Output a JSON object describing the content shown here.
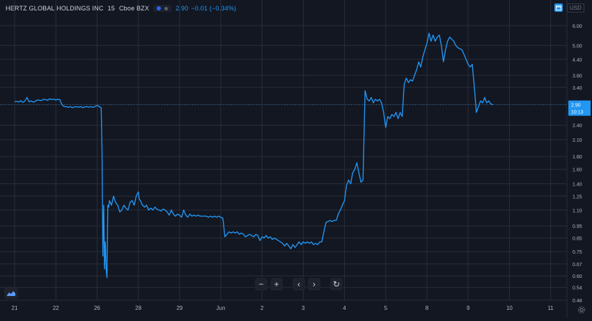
{
  "header": {
    "symbol": "HERTZ GLOBAL HOLDINGS INC",
    "interval": "15",
    "exchange": "Cboe BZX",
    "price": "2.90",
    "change": "−0.01 (−0.34%)"
  },
  "currency": "USD",
  "toolbar": {
    "zoom_out": "−",
    "zoom_in": "+",
    "scroll_left": "‹",
    "scroll_right": "›",
    "reset": "↻"
  },
  "price_label": {
    "value": "2.90",
    "time": "10:13"
  },
  "colors": {
    "background": "#131722",
    "line": "#2196f3",
    "grid": "#2a2e39",
    "text": "#b2b5be"
  },
  "chart_data": {
    "type": "line",
    "title": "HERTZ GLOBAL HOLDINGS INC · 15 · Cboe BZX",
    "y_scale": "log",
    "ylim": [
      0.48,
      6.6
    ],
    "grid": true,
    "y_ticks": [
      "6.00",
      "5.00",
      "4.40",
      "3.80",
      "3.40",
      "2.90",
      "2.40",
      "2.10",
      "1.80",
      "1.60",
      "1.40",
      "1.25",
      "1.10",
      "0.95",
      "0.85",
      "0.75",
      "0.67",
      "0.60",
      "0.54",
      "0.48"
    ],
    "x_ticks": [
      "21",
      "22",
      "26",
      "28",
      "29",
      "Jun",
      "2",
      "3",
      "4",
      "5",
      "8",
      "9",
      "10",
      "11"
    ],
    "series": [
      {
        "name": "",
        "points": [
          [
            0.0,
            2.98
          ],
          [
            0.05,
            2.99
          ],
          [
            0.1,
            2.97
          ],
          [
            0.15,
            3.01
          ],
          [
            0.2,
            2.96
          ],
          [
            0.25,
            3.0
          ],
          [
            0.3,
            3.1
          ],
          [
            0.35,
            2.98
          ],
          [
            0.4,
            3.0
          ],
          [
            0.45,
            2.97
          ],
          [
            0.5,
            2.99
          ],
          [
            0.55,
            3.03
          ],
          [
            0.6,
            3.02
          ],
          [
            0.65,
            3.01
          ],
          [
            0.7,
            3.05
          ],
          [
            0.75,
            3.04
          ],
          [
            0.8,
            3.02
          ],
          [
            0.85,
            3.06
          ],
          [
            0.9,
            3.04
          ],
          [
            0.95,
            3.05
          ],
          [
            1.0,
            3.03
          ],
          [
            1.05,
            3.05
          ],
          [
            1.1,
            3.03
          ],
          [
            1.12,
            2.97
          ],
          [
            1.15,
            2.9
          ],
          [
            1.2,
            2.85
          ],
          [
            1.25,
            2.85
          ],
          [
            1.3,
            2.83
          ],
          [
            1.35,
            2.85
          ],
          [
            1.4,
            2.82
          ],
          [
            1.45,
            2.84
          ],
          [
            1.5,
            2.85
          ],
          [
            1.55,
            2.83
          ],
          [
            1.6,
            2.85
          ],
          [
            1.65,
            2.82
          ],
          [
            1.7,
            2.84
          ],
          [
            1.75,
            2.85
          ],
          [
            1.8,
            2.83
          ],
          [
            1.85,
            2.85
          ],
          [
            1.9,
            2.83
          ],
          [
            1.95,
            2.85
          ],
          [
            2.0,
            2.88
          ],
          [
            2.05,
            2.85
          ],
          [
            2.1,
            2.82
          ],
          [
            2.12,
            1.9
          ],
          [
            2.14,
            0.72
          ],
          [
            2.16,
            1.15
          ],
          [
            2.18,
            0.64
          ],
          [
            2.2,
            0.82
          ],
          [
            2.22,
            0.64
          ],
          [
            2.24,
            0.59
          ],
          [
            2.26,
            1.15
          ],
          [
            2.28,
            1.13
          ],
          [
            2.3,
            1.2
          ],
          [
            2.35,
            1.15
          ],
          [
            2.4,
            1.25
          ],
          [
            2.45,
            1.18
          ],
          [
            2.5,
            1.15
          ],
          [
            2.55,
            1.08
          ],
          [
            2.6,
            1.1
          ],
          [
            2.65,
            1.15
          ],
          [
            2.7,
            1.12
          ],
          [
            2.75,
            1.1
          ],
          [
            2.8,
            1.18
          ],
          [
            2.85,
            1.2
          ],
          [
            2.9,
            1.15
          ],
          [
            2.95,
            1.25
          ],
          [
            3.0,
            1.3
          ],
          [
            3.02,
            1.22
          ],
          [
            3.05,
            1.2
          ],
          [
            3.1,
            1.15
          ],
          [
            3.15,
            1.13
          ],
          [
            3.2,
            1.15
          ],
          [
            3.25,
            1.1
          ],
          [
            3.3,
            1.12
          ],
          [
            3.35,
            1.1
          ],
          [
            3.4,
            1.13
          ],
          [
            3.45,
            1.11
          ],
          [
            3.5,
            1.1
          ],
          [
            3.55,
            1.09
          ],
          [
            3.6,
            1.11
          ],
          [
            3.65,
            1.1
          ],
          [
            3.7,
            1.08
          ],
          [
            3.75,
            1.05
          ],
          [
            3.8,
            1.1
          ],
          [
            3.85,
            1.06
          ],
          [
            3.9,
            1.04
          ],
          [
            3.95,
            1.06
          ],
          [
            4.0,
            1.05
          ],
          [
            4.05,
            1.03
          ],
          [
            4.1,
            1.1
          ],
          [
            4.15,
            1.05
          ],
          [
            4.2,
            1.03
          ],
          [
            4.25,
            1.06
          ],
          [
            4.3,
            1.04
          ],
          [
            4.35,
            1.05
          ],
          [
            4.4,
            1.04
          ],
          [
            4.45,
            1.05
          ],
          [
            4.5,
            1.04
          ],
          [
            4.55,
            1.04
          ],
          [
            4.6,
            1.04
          ],
          [
            4.65,
            1.04
          ],
          [
            4.7,
            1.03
          ],
          [
            4.75,
            1.04
          ],
          [
            4.8,
            1.03
          ],
          [
            4.85,
            1.04
          ],
          [
            4.9,
            1.03
          ],
          [
            4.95,
            1.04
          ],
          [
            5.0,
            1.03
          ],
          [
            5.05,
            1.02
          ],
          [
            5.1,
            0.86
          ],
          [
            5.15,
            0.88
          ],
          [
            5.2,
            0.9
          ],
          [
            5.25,
            0.89
          ],
          [
            5.3,
            0.9
          ],
          [
            5.35,
            0.89
          ],
          [
            5.4,
            0.9
          ],
          [
            5.45,
            0.88
          ],
          [
            5.5,
            0.89
          ],
          [
            5.55,
            0.88
          ],
          [
            5.6,
            0.86
          ],
          [
            5.65,
            0.87
          ],
          [
            5.7,
            0.88
          ],
          [
            5.75,
            0.87
          ],
          [
            5.8,
            0.86
          ],
          [
            5.85,
            0.88
          ],
          [
            5.9,
            0.87
          ],
          [
            5.95,
            0.83
          ],
          [
            6.0,
            0.86
          ],
          [
            6.05,
            0.85
          ],
          [
            6.1,
            0.87
          ],
          [
            6.15,
            0.85
          ],
          [
            6.2,
            0.86
          ],
          [
            6.25,
            0.84
          ],
          [
            6.3,
            0.85
          ],
          [
            6.35,
            0.84
          ],
          [
            6.4,
            0.83
          ],
          [
            6.45,
            0.82
          ],
          [
            6.5,
            0.81
          ],
          [
            6.55,
            0.79
          ],
          [
            6.6,
            0.81
          ],
          [
            6.65,
            0.79
          ],
          [
            6.7,
            0.77
          ],
          [
            6.75,
            0.8
          ],
          [
            6.8,
            0.78
          ],
          [
            6.85,
            0.8
          ],
          [
            6.9,
            0.82
          ],
          [
            6.95,
            0.8
          ],
          [
            7.0,
            0.82
          ],
          [
            7.05,
            0.81
          ],
          [
            7.1,
            0.82
          ],
          [
            7.15,
            0.81
          ],
          [
            7.2,
            0.82
          ],
          [
            7.25,
            0.8
          ],
          [
            7.3,
            0.81
          ],
          [
            7.35,
            0.8
          ],
          [
            7.4,
            0.82
          ],
          [
            7.45,
            0.82
          ],
          [
            7.5,
            0.9
          ],
          [
            7.55,
            0.98
          ],
          [
            7.6,
            0.99
          ],
          [
            7.65,
            1.0
          ],
          [
            7.7,
            0.99
          ],
          [
            7.75,
            1.0
          ],
          [
            7.8,
            1.0
          ],
          [
            7.85,
            1.06
          ],
          [
            7.9,
            1.1
          ],
          [
            7.95,
            1.15
          ],
          [
            8.0,
            1.2
          ],
          [
            8.05,
            1.38
          ],
          [
            8.1,
            1.45
          ],
          [
            8.15,
            1.4
          ],
          [
            8.2,
            1.55
          ],
          [
            8.25,
            1.6
          ],
          [
            8.3,
            1.7
          ],
          [
            8.35,
            1.55
          ],
          [
            8.4,
            1.42
          ],
          [
            8.45,
            1.45
          ],
          [
            8.5,
            3.3
          ],
          [
            8.55,
            3.05
          ],
          [
            8.6,
            3.0
          ],
          [
            8.65,
            3.1
          ],
          [
            8.7,
            2.95
          ],
          [
            8.75,
            3.05
          ],
          [
            8.8,
            3.0
          ],
          [
            8.85,
            3.05
          ],
          [
            8.9,
            2.95
          ],
          [
            8.95,
            2.7
          ],
          [
            9.0,
            2.35
          ],
          [
            9.05,
            2.6
          ],
          [
            9.1,
            2.55
          ],
          [
            9.15,
            2.65
          ],
          [
            9.2,
            2.6
          ],
          [
            9.25,
            2.7
          ],
          [
            9.3,
            2.55
          ],
          [
            9.35,
            2.7
          ],
          [
            9.4,
            2.6
          ],
          [
            9.45,
            3.5
          ],
          [
            9.5,
            3.7
          ],
          [
            9.55,
            3.55
          ],
          [
            9.6,
            3.65
          ],
          [
            9.65,
            3.6
          ],
          [
            9.7,
            3.8
          ],
          [
            9.75,
            4.0
          ],
          [
            9.8,
            4.3
          ],
          [
            9.85,
            4.1
          ],
          [
            9.9,
            4.5
          ],
          [
            9.95,
            4.8
          ],
          [
            10.0,
            5.1
          ],
          [
            10.05,
            5.6
          ],
          [
            10.1,
            5.2
          ],
          [
            10.15,
            5.5
          ],
          [
            10.2,
            5.2
          ],
          [
            10.25,
            5.4
          ],
          [
            10.3,
            5.5
          ],
          [
            10.35,
            5.0
          ],
          [
            10.4,
            4.3
          ],
          [
            10.45,
            4.8
          ],
          [
            10.5,
            5.2
          ],
          [
            10.55,
            5.4
          ],
          [
            10.6,
            5.3
          ],
          [
            10.65,
            5.2
          ],
          [
            10.7,
            5.0
          ],
          [
            10.75,
            4.9
          ],
          [
            10.8,
            4.85
          ],
          [
            10.85,
            4.8
          ],
          [
            10.9,
            4.6
          ],
          [
            10.95,
            4.4
          ],
          [
            11.0,
            4.2
          ],
          [
            11.05,
            4.1
          ],
          [
            11.1,
            4.2
          ],
          [
            11.15,
            3.4
          ],
          [
            11.2,
            2.7
          ],
          [
            11.25,
            2.85
          ],
          [
            11.3,
            3.0
          ],
          [
            11.35,
            2.95
          ],
          [
            11.4,
            3.1
          ],
          [
            11.45,
            2.95
          ],
          [
            11.5,
            3.0
          ],
          [
            11.55,
            2.92
          ],
          [
            11.6,
            2.9
          ]
        ]
      }
    ]
  }
}
